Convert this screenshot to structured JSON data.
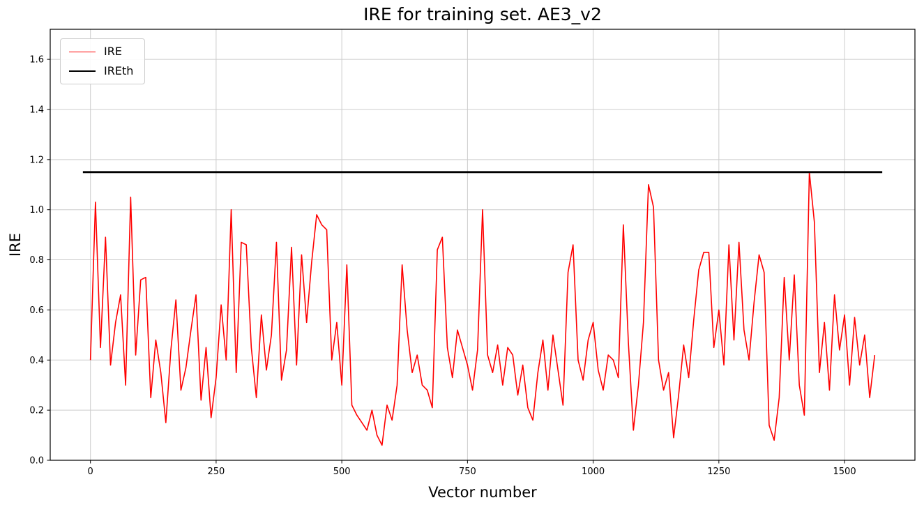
{
  "figure": {
    "background": "#ffffff"
  },
  "chart_data": {
    "type": "line",
    "title": "IRE for training set. AE3_v2",
    "xlabel": "Vector number",
    "ylabel": "IRE",
    "xlim": [
      -80,
      1640
    ],
    "ylim": [
      0,
      1.72
    ],
    "x_ticks": [
      0,
      250,
      500,
      750,
      1000,
      1250,
      1500
    ],
    "y_ticks": [
      0.0,
      0.2,
      0.4,
      0.6,
      0.8,
      1.0,
      1.2,
      1.4,
      1.6
    ],
    "grid": true,
    "grid_color": "#cccccc",
    "spine_color": "#000000",
    "legend": {
      "position": "upper left",
      "entries": [
        "IRE",
        "IREth"
      ]
    },
    "series": [
      {
        "name": "IRE",
        "color": "#ff0000",
        "line_width": 1.6,
        "x_start": 0,
        "x_step": 10,
        "values": [
          0.4,
          1.03,
          0.45,
          0.89,
          0.38,
          0.55,
          0.66,
          0.3,
          1.05,
          0.42,
          0.72,
          0.73,
          0.25,
          0.48,
          0.35,
          0.15,
          0.44,
          0.64,
          0.28,
          0.37,
          0.52,
          0.66,
          0.24,
          0.45,
          0.17,
          0.33,
          0.62,
          0.4,
          1.0,
          0.35,
          0.87,
          0.86,
          0.45,
          0.25,
          0.58,
          0.36,
          0.5,
          0.87,
          0.32,
          0.44,
          0.85,
          0.38,
          0.82,
          0.55,
          0.79,
          0.98,
          0.94,
          0.92,
          0.4,
          0.55,
          0.3,
          0.78,
          0.22,
          0.18,
          0.15,
          0.12,
          0.2,
          0.1,
          0.06,
          0.22,
          0.16,
          0.3,
          0.78,
          0.52,
          0.35,
          0.42,
          0.3,
          0.28,
          0.21,
          0.84,
          0.89,
          0.45,
          0.33,
          0.52,
          0.45,
          0.38,
          0.28,
          0.44,
          1.0,
          0.42,
          0.35,
          0.46,
          0.3,
          0.45,
          0.42,
          0.26,
          0.38,
          0.21,
          0.16,
          0.35,
          0.48,
          0.28,
          0.5,
          0.36,
          0.22,
          0.75,
          0.86,
          0.4,
          0.32,
          0.48,
          0.55,
          0.36,
          0.28,
          0.42,
          0.4,
          0.33,
          0.94,
          0.47,
          0.12,
          0.3,
          0.55,
          1.1,
          1.01,
          0.4,
          0.28,
          0.35,
          0.09,
          0.26,
          0.46,
          0.33,
          0.56,
          0.76,
          0.83,
          0.83,
          0.45,
          0.6,
          0.38,
          0.86,
          0.48,
          0.87,
          0.52,
          0.4,
          0.63,
          0.82,
          0.75,
          0.14,
          0.08,
          0.25,
          0.73,
          0.4,
          0.74,
          0.3,
          0.18,
          1.15,
          0.95,
          0.35,
          0.55,
          0.28,
          0.66,
          0.44,
          0.58,
          0.3,
          0.57,
          0.38,
          0.5,
          0.25,
          0.42
        ]
      },
      {
        "name": "IREth",
        "color": "#000000",
        "line_width": 2.8,
        "type": "hline",
        "y": 1.15,
        "x_range": [
          -15,
          1575
        ]
      }
    ]
  }
}
